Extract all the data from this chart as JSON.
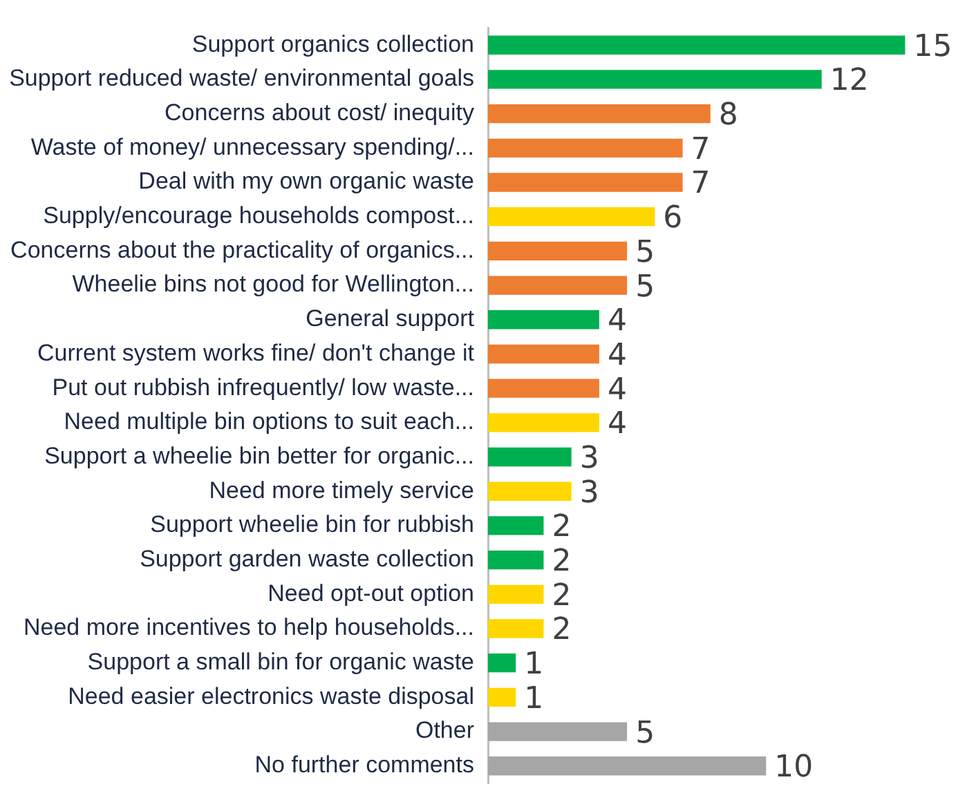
{
  "chart_data": {
    "type": "bar",
    "orientation": "horizontal",
    "data_labels": true,
    "legend": false,
    "tick_labels": "y",
    "categories": [
      "Support organics collection",
      "Support reduced waste/ environmental goals",
      "Concerns about cost/ inequity",
      "Waste of money/ unnecessary spending/...",
      "Deal with my own organic waste",
      "Supply/encourage households compost...",
      "Concerns about the practicality of organics...",
      "Wheelie bins not good for Wellington...",
      "General support",
      "Current system works fine/ don't change it",
      "Put out rubbish infrequently/ low waste...",
      "Need multiple bin options to suit each...",
      "Support a wheelie bin better for organic...",
      "Need more timely service",
      "Support wheelie bin for rubbish",
      "Support garden waste collection",
      "Need opt-out option",
      "Need more incentives to help households...",
      "Support a small bin for organic waste",
      "Need easier electronics waste disposal",
      "Other",
      "No further comments"
    ],
    "values": [
      15,
      12,
      8,
      7,
      7,
      6,
      5,
      5,
      4,
      4,
      4,
      4,
      3,
      3,
      2,
      2,
      2,
      2,
      1,
      1,
      5,
      10
    ],
    "colors": [
      "#00b050",
      "#00b050",
      "#ed7d31",
      "#ed7d31",
      "#ed7d31",
      "#ffd700",
      "#ed7d31",
      "#ed7d31",
      "#00b050",
      "#ed7d31",
      "#ed7d31",
      "#ffd700",
      "#00b050",
      "#ffd700",
      "#00b050",
      "#00b050",
      "#ffd700",
      "#ffd700",
      "#00b050",
      "#ffd700",
      "#a6a6a6",
      "#a6a6a6"
    ]
  }
}
